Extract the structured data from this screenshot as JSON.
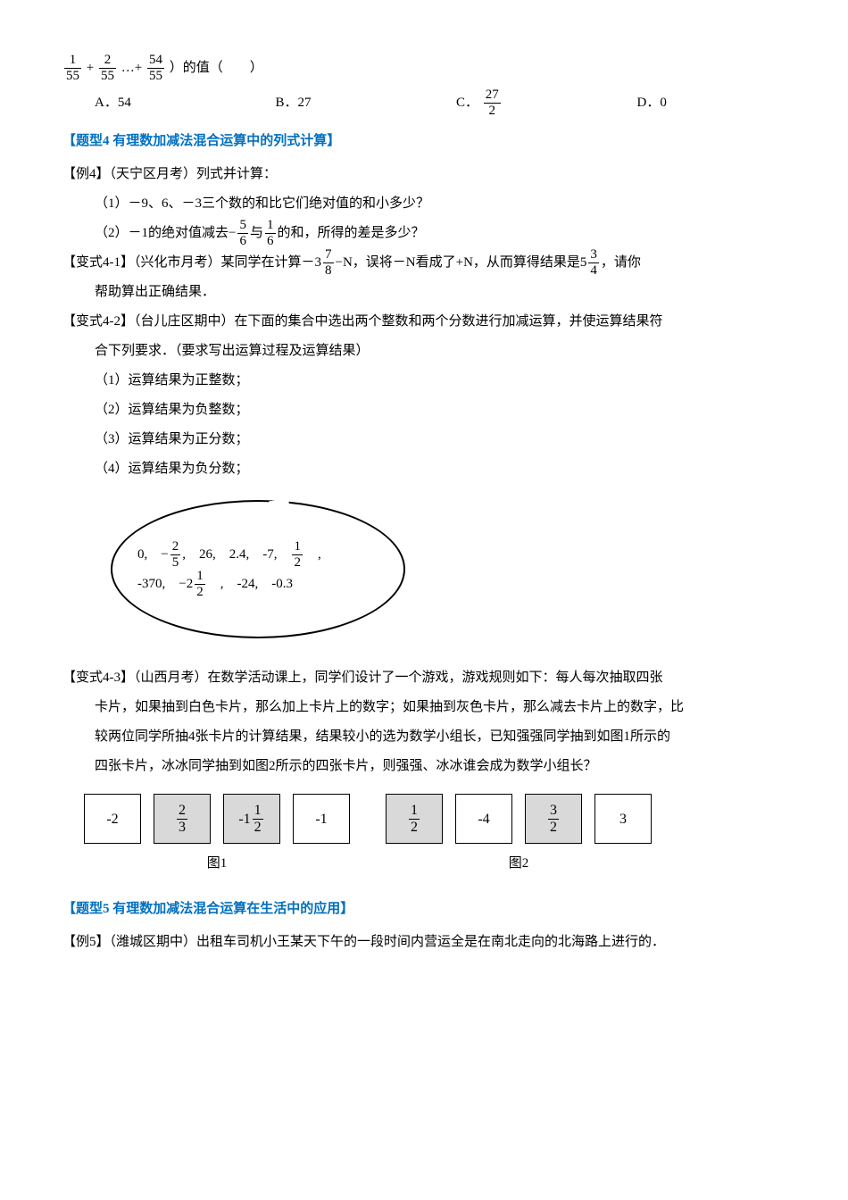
{
  "topExpr": {
    "t1n": "1",
    "t1d": "55",
    "t2n": "2",
    "t2d": "55",
    "t3n": "54",
    "t3d": "55",
    "tail": "）的值（　　）"
  },
  "choices": {
    "a": "A．54",
    "b": "B．27",
    "cLabel": "C．",
    "cNum": "27",
    "cDen": "2",
    "d": "D．0"
  },
  "section4": "【题型4 有理数加减法混合运算中的列式计算】",
  "ex4": "【例4】（天宁区月考）列式并计算：",
  "ex4_1": "（1）－9、6、－3三个数的和比它们绝对值的和小多少？",
  "ex4_2a": "（2）－1的绝对值减去",
  "ex4_f1n": "5",
  "ex4_f1d": "6",
  "ex4_2b": "与",
  "ex4_f2n": "1",
  "ex4_f2d": "6",
  "ex4_2c": "的和，所得的差是多少？",
  "v41a": "【变式4-1】（兴化市月考）某同学在计算－3",
  "v41_f1n": "7",
  "v41_f1d": "8",
  "v41b": "−N，误将－N看成了+N，从而算得结果是5",
  "v41_f2n": "3",
  "v41_f2d": "4",
  "v41c": "，请你",
  "v41d": "帮助算出正确结果．",
  "v42a": "【变式4-2】（台儿庄区期中）在下面的集合中选出两个整数和两个分数进行加减运算，并使运算结果符",
  "v42b": "合下列要求．（要求写出运算过程及运算结果）",
  "v42_1": "（1）运算结果为正整数；",
  "v42_2": "（2）运算结果为负整数；",
  "v42_3": "（3）运算结果为正分数；",
  "v42_4": "（4）运算结果为负分数；",
  "oval": {
    "r1a": "0,　−",
    "r1f1n": "2",
    "r1f1d": "5",
    "r1b": ",　26,　2.4,　-7,　",
    "r1f2n": "1",
    "r1f2d": "2",
    "r1c": "　,",
    "r2a": "-370,　−2",
    "r2f1n": "1",
    "r2f1d": "2",
    "r2b": "　,　-24,　-0.3"
  },
  "v43a": "【变式4-3】（山西月考）在数学活动课上，同学们设计了一个游戏，游戏规则如下：每人每次抽取四张",
  "v43b": "卡片，如果抽到白色卡片，那么加上卡片上的数字；如果抽到灰色卡片，那么减去卡片上的数字，比",
  "v43c": "较两位同学所抽4张卡片的计算结果，结果较小的选为数学小组长，已知强强同学抽到如图1所示的",
  "v43d": "四张卡片，冰冰同学抽到如图2所示的四张卡片，则强强、冰冰谁会成为数学小组长？",
  "cards": {
    "g1": [
      "-2",
      "frac:2:3",
      "mix:-1:1:2",
      "-1"
    ],
    "g2": [
      "frac:1:2",
      "-4",
      "frac:3:2",
      "3"
    ]
  },
  "figLabel1": "图1",
  "figLabel2": "图2",
  "section5": "【题型5 有理数加减法混合运算在生活中的应用】",
  "ex5": "【例5】（潍城区期中）出租车司机小王某天下午的一段时间内营运全是在南北走向的北海路上进行的．"
}
